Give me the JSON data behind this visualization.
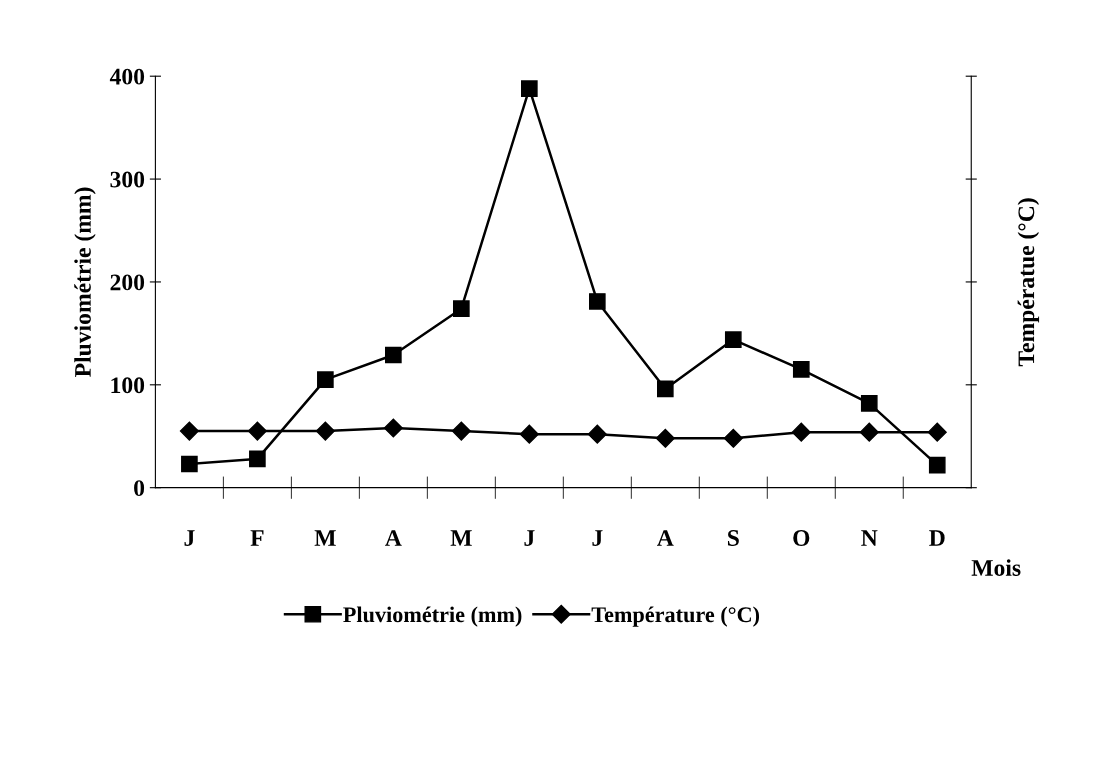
{
  "chart_data": {
    "type": "line",
    "xlabel": "Mois",
    "ylabel": "Pluviométrie (mm)",
    "y2label": "Températue (°C)",
    "categories": [
      "J",
      "F",
      "M",
      "A",
      "M",
      "J",
      "J",
      "A",
      "S",
      "O",
      "N",
      "D"
    ],
    "series": [
      {
        "name": "Pluviométrie (mm)",
        "color": "#000000",
        "marker": "square",
        "values": [
          23,
          28,
          105,
          129,
          174,
          388,
          181,
          96,
          144,
          115,
          82,
          22
        ]
      },
      {
        "name": "Température (°C)",
        "color": "#000000",
        "marker": "diamond",
        "values": [
          55,
          55,
          55,
          58,
          55,
          52,
          52,
          48,
          48,
          54,
          54,
          54
        ]
      }
    ],
    "ylim": [
      0,
      400
    ],
    "yticks": [
      0,
      100,
      200,
      300,
      400
    ],
    "grid": false,
    "legend": "bottom",
    "line_style": "solid"
  }
}
